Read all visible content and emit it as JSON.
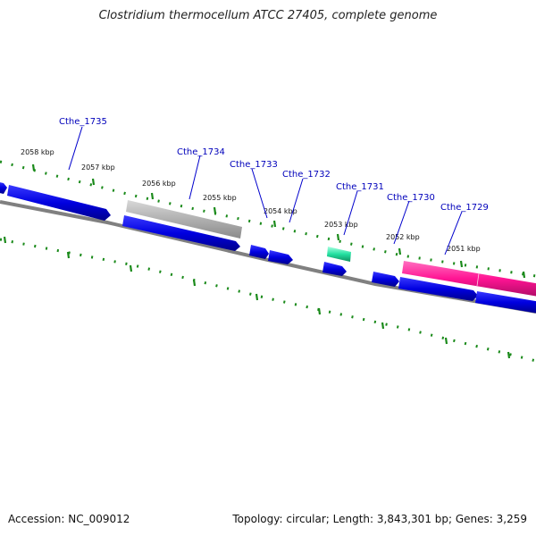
{
  "title": "Clostridium thermocellum ATCC 27405, complete genome",
  "footer": {
    "accession": "Accession: NC_009012",
    "summary": "Topology: circular; Length: 3,843,301 bp; Genes: 3,259"
  },
  "colors": {
    "cds": "#0000e0",
    "pseudo": "#b8b8b8",
    "rna": "#22e0a0",
    "highlight": "#ff1493",
    "backbone": "#777777",
    "ticks": "#1a8a1a",
    "label": "#0000bb"
  },
  "genes": [
    {
      "locus": "Cthe_1735"
    },
    {
      "locus": "Cthe_1734"
    },
    {
      "locus": "Cthe_1733"
    },
    {
      "locus": "Cthe_1732"
    },
    {
      "locus": "Cthe_1731"
    },
    {
      "locus": "Cthe_1730"
    },
    {
      "locus": "Cthe_1729"
    }
  ],
  "kbp_labels": [
    "2058 kbp",
    "2057 kbp",
    "2056 kbp",
    "2055 kbp",
    "2054 kbp",
    "2053 kbp",
    "2052 kbp",
    "2051 kbp"
  ]
}
